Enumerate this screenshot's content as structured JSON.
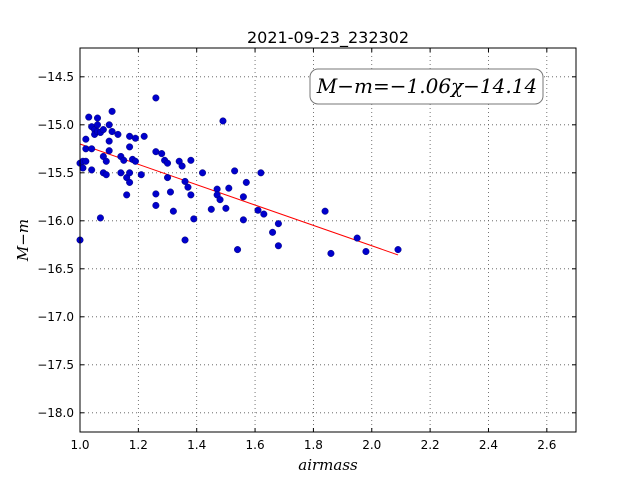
{
  "chart_data": {
    "type": "scatter",
    "title": "2021-09-23_232302",
    "xlabel": "airmass",
    "ylabel": "M−m",
    "xlim": [
      1.0,
      2.7
    ],
    "ylim": [
      -18.2,
      -14.2
    ],
    "y_inverted": true,
    "grid": true,
    "x_ticks": [
      1.0,
      1.2,
      1.4,
      1.6,
      1.8,
      2.0,
      2.2,
      2.4,
      2.6
    ],
    "x_tick_labels": [
      "1.0",
      "1.2",
      "1.4",
      "1.6",
      "1.8",
      "2.0",
      "2.2",
      "2.4",
      "2.6"
    ],
    "y_ticks": [
      -14.5,
      -15.0,
      -15.5,
      -16.0,
      -16.5,
      -17.0,
      -17.5,
      -18.0
    ],
    "y_tick_labels": [
      "−14.5",
      "−15.0",
      "−15.5",
      "−16.0",
      "−16.5",
      "−17.0",
      "−17.5",
      "−18.0"
    ],
    "annotation": "M−m=−1.06χ−14.14",
    "fit": {
      "slope": -1.06,
      "intercept": -14.14,
      "x_range": [
        1.0,
        2.09
      ],
      "color": "#ff0000"
    },
    "point_color": "#0000cc",
    "points": [
      [
        1.0,
        -15.4
      ],
      [
        1.0,
        -16.2
      ],
      [
        1.01,
        -15.45
      ],
      [
        1.01,
        -15.38
      ],
      [
        1.02,
        -15.15
      ],
      [
        1.02,
        -15.25
      ],
      [
        1.02,
        -15.38
      ],
      [
        1.03,
        -14.92
      ],
      [
        1.04,
        -15.02
      ],
      [
        1.04,
        -15.25
      ],
      [
        1.04,
        -15.47
      ],
      [
        1.05,
        -15.05
      ],
      [
        1.05,
        -15.1
      ],
      [
        1.06,
        -14.93
      ],
      [
        1.06,
        -15.0
      ],
      [
        1.06,
        -15.07
      ],
      [
        1.07,
        -15.08
      ],
      [
        1.07,
        -15.97
      ],
      [
        1.08,
        -15.05
      ],
      [
        1.08,
        -15.33
      ],
      [
        1.08,
        -15.5
      ],
      [
        1.09,
        -15.52
      ],
      [
        1.09,
        -15.38
      ],
      [
        1.1,
        -15.0
      ],
      [
        1.1,
        -15.17
      ],
      [
        1.1,
        -15.27
      ],
      [
        1.11,
        -15.07
      ],
      [
        1.11,
        -14.86
      ],
      [
        1.13,
        -15.1
      ],
      [
        1.14,
        -15.33
      ],
      [
        1.14,
        -15.5
      ],
      [
        1.15,
        -15.37
      ],
      [
        1.16,
        -15.55
      ],
      [
        1.16,
        -15.73
      ],
      [
        1.17,
        -15.12
      ],
      [
        1.17,
        -15.23
      ],
      [
        1.17,
        -15.5
      ],
      [
        1.17,
        -15.6
      ],
      [
        1.18,
        -15.36
      ],
      [
        1.19,
        -15.14
      ],
      [
        1.19,
        -15.38
      ],
      [
        1.21,
        -15.52
      ],
      [
        1.22,
        -15.12
      ],
      [
        1.26,
        -14.72
      ],
      [
        1.26,
        -15.28
      ],
      [
        1.26,
        -15.72
      ],
      [
        1.26,
        -15.84
      ],
      [
        1.28,
        -15.3
      ],
      [
        1.29,
        -15.37
      ],
      [
        1.3,
        -15.4
      ],
      [
        1.3,
        -15.55
      ],
      [
        1.31,
        -15.7
      ],
      [
        1.32,
        -15.9
      ],
      [
        1.34,
        -15.38
      ],
      [
        1.35,
        -15.43
      ],
      [
        1.36,
        -16.2
      ],
      [
        1.36,
        -15.59
      ],
      [
        1.37,
        -15.65
      ],
      [
        1.38,
        -15.37
      ],
      [
        1.38,
        -15.73
      ],
      [
        1.39,
        -15.98
      ],
      [
        1.42,
        -15.5
      ],
      [
        1.45,
        -15.88
      ],
      [
        1.47,
        -15.67
      ],
      [
        1.47,
        -15.73
      ],
      [
        1.48,
        -15.78
      ],
      [
        1.49,
        -14.96
      ],
      [
        1.5,
        -15.87
      ],
      [
        1.51,
        -15.66
      ],
      [
        1.53,
        -15.48
      ],
      [
        1.54,
        -16.3
      ],
      [
        1.56,
        -15.75
      ],
      [
        1.56,
        -15.99
      ],
      [
        1.57,
        -15.6
      ],
      [
        1.61,
        -15.89
      ],
      [
        1.62,
        -15.5
      ],
      [
        1.63,
        -15.93
      ],
      [
        1.66,
        -16.12
      ],
      [
        1.68,
        -16.03
      ],
      [
        1.68,
        -16.26
      ],
      [
        1.84,
        -15.9
      ],
      [
        1.86,
        -16.34
      ],
      [
        1.95,
        -16.18
      ],
      [
        1.98,
        -16.32
      ],
      [
        2.09,
        -16.3
      ]
    ]
  }
}
